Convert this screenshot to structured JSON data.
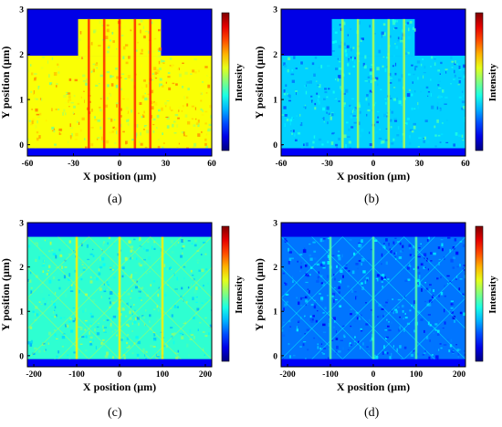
{
  "chart_data": [
    {
      "type": "heatmap",
      "panel_label": "(a)",
      "xlabel": "X position (μm)",
      "ylabel": "Y position (μm)",
      "colorbar_label": "Intensity",
      "xlim": [
        -60,
        60
      ],
      "ylim": [
        -0.25,
        3
      ],
      "x_ticks": [
        "-60",
        "-30",
        "0",
        "30",
        "60"
      ],
      "x_tick_values": [
        -60,
        -30,
        0,
        30,
        60
      ],
      "y_ticks": [
        "0",
        "1",
        "2",
        "3"
      ],
      "y_tick_values": [
        0,
        1,
        2,
        3
      ],
      "colormap": "jet",
      "level": 0.62,
      "slab_top": 1.97,
      "ridge": {
        "x_left": -27,
        "x_right": 27,
        "top": 2.78
      },
      "streaks_x": [
        -20,
        -10,
        0,
        10,
        20
      ],
      "diagonals": false
    },
    {
      "type": "heatmap",
      "panel_label": "(b)",
      "xlabel": "X position (μm)",
      "ylabel": "Y position (μm)",
      "colorbar_label": "Intensity",
      "xlim": [
        -60,
        60
      ],
      "ylim": [
        -0.25,
        3
      ],
      "x_ticks": [
        "-60",
        "-30",
        "0",
        "30",
        "60"
      ],
      "x_tick_values": [
        -60,
        -30,
        0,
        30,
        60
      ],
      "y_ticks": [
        "0",
        "1",
        "2",
        "3"
      ],
      "y_tick_values": [
        0,
        1,
        2,
        3
      ],
      "colormap": "jet",
      "level": 0.33,
      "slab_top": 1.97,
      "ridge": {
        "x_left": -27,
        "x_right": 27,
        "top": 2.78
      },
      "streaks_x": [
        -20,
        -10,
        0,
        10,
        20
      ],
      "diagonals": false
    },
    {
      "type": "heatmap",
      "panel_label": "(c)",
      "xlabel": "X position (μm)",
      "ylabel": "Y position (μm)",
      "colorbar_label": "Intensity",
      "xlim": [
        -215,
        215
      ],
      "ylim": [
        -0.25,
        3
      ],
      "x_ticks": [
        "-200",
        "-100",
        "0",
        "100",
        "200"
      ],
      "x_tick_values": [
        -200,
        -100,
        0,
        100,
        200
      ],
      "y_ticks": [
        "0",
        "1",
        "2",
        "3"
      ],
      "y_tick_values": [
        0,
        1,
        2,
        3
      ],
      "colormap": "jet",
      "level": 0.42,
      "slab_top": 2.68,
      "ridge": null,
      "streaks_x": [
        -100,
        0,
        100
      ],
      "diagonals": true
    },
    {
      "type": "heatmap",
      "panel_label": "(d)",
      "xlabel": "X position (μm)",
      "ylabel": "Y position (μm)",
      "colorbar_label": "Intensity",
      "xlim": [
        -215,
        215
      ],
      "ylim": [
        -0.25,
        3
      ],
      "x_ticks": [
        "-200",
        "-100",
        "0",
        "100",
        "200"
      ],
      "x_tick_values": [
        -200,
        -100,
        0,
        100,
        200
      ],
      "y_ticks": [
        "0",
        "1",
        "2",
        "3"
      ],
      "y_tick_values": [
        0,
        1,
        2,
        3
      ],
      "colormap": "jet",
      "level": 0.24,
      "slab_top": 2.68,
      "ridge": null,
      "streaks_x": [
        -100,
        0,
        100
      ],
      "diagonals": true
    }
  ]
}
